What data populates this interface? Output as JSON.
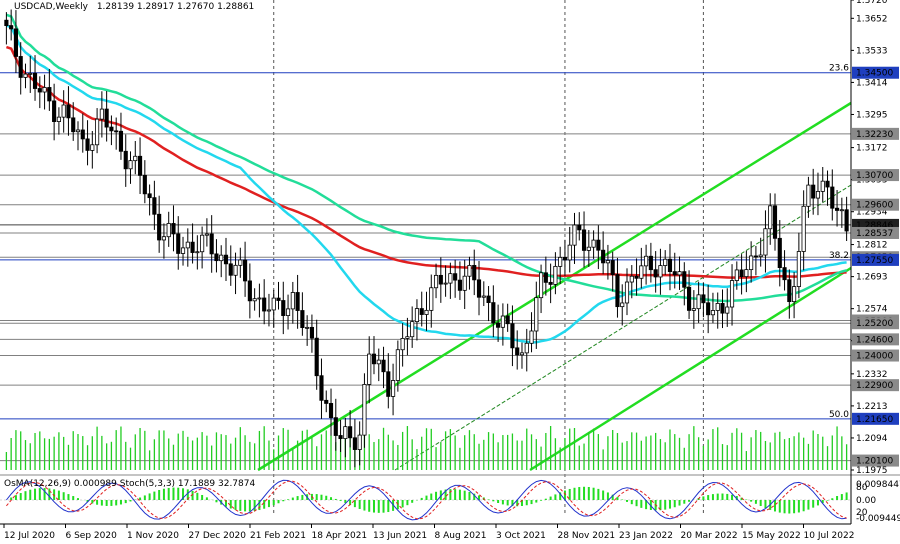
{
  "chart_data": {
    "type": "candlestick",
    "title": {
      "symbol": "USDCAD,Weekly",
      "ohlc": "1.28139 1.28917 1.27670 1.28861"
    },
    "price_axis": {
      "range": [
        1.1975,
        1.372
      ],
      "ticks": [
        "1.3720",
        "1.3652",
        "1.3533",
        "1.3414",
        "1.3295",
        "1.3172",
        "1.3053",
        "1.2934",
        "1.2812",
        "1.2693",
        "1.2574",
        "1.2455",
        "1.2332",
        "1.2213",
        "1.2094",
        "1.1975"
      ]
    },
    "levels": [
      {
        "price": 1.345,
        "label": "1.34500",
        "color": "#1f3fbf",
        "fib": "23.6"
      },
      {
        "price": 1.3223,
        "label": "1.32230",
        "color": "#808080"
      },
      {
        "price": 1.307,
        "label": "1.30700",
        "color": "#808080"
      },
      {
        "price": 1.296,
        "label": "1.29600",
        "color": "#808080"
      },
      {
        "price": 1.2885,
        "label": "1.28846",
        "color": "#404040"
      },
      {
        "price": 1.2855,
        "label": "1.28537",
        "color": "#808080"
      },
      {
        "price": 1.2765,
        "label": "1.27650",
        "color": "#808080"
      },
      {
        "price": 1.2755,
        "label": "1.27550",
        "color": "#1f3fbf",
        "fib": "38.2"
      },
      {
        "price": 1.253,
        "label": "1.25300",
        "color": "#808080"
      },
      {
        "price": 1.252,
        "label": "1.25200",
        "color": "#808080"
      },
      {
        "price": 1.246,
        "label": "1.24600",
        "color": "#808080"
      },
      {
        "price": 1.24,
        "label": "1.24000",
        "color": "#808080"
      },
      {
        "price": 1.229,
        "label": "1.22900",
        "color": "#808080"
      },
      {
        "price": 1.2165,
        "label": "1.21650",
        "color": "#1f3fbf",
        "fib": "50.0"
      },
      {
        "price": 1.201,
        "label": "1.20100",
        "color": "#808080"
      }
    ],
    "x_axis_labels": [
      "12 Jul 2020",
      "6 Sep 2020",
      "1 Nov 2020",
      "27 Dec 2020",
      "21 Feb 2021",
      "18 Apr 2021",
      "13 Jun 2021",
      "8 Aug 2021",
      "3 Oct 2021",
      "28 Nov 2021",
      "23 Jan 2022",
      "20 Mar 2022",
      "15 May 2022",
      "10 Jul 2022"
    ],
    "waypoints": [
      [
        0,
        1.36
      ],
      [
        4,
        1.345
      ],
      [
        8,
        1.335
      ],
      [
        12,
        1.33
      ],
      [
        16,
        1.318
      ],
      [
        20,
        1.328
      ],
      [
        24,
        1.318
      ],
      [
        28,
        1.306
      ],
      [
        32,
        1.288
      ],
      [
        36,
        1.28
      ],
      [
        40,
        1.282
      ],
      [
        44,
        1.278
      ],
      [
        48,
        1.272
      ],
      [
        52,
        1.262
      ],
      [
        56,
        1.256
      ],
      [
        60,
        1.262
      ],
      [
        64,
        1.242
      ],
      [
        68,
        1.215
      ],
      [
        70,
        1.208
      ],
      [
        74,
        1.212
      ],
      [
        76,
        1.24
      ],
      [
        80,
        1.23
      ],
      [
        84,
        1.248
      ],
      [
        88,
        1.262
      ],
      [
        92,
        1.268
      ],
      [
        96,
        1.27
      ],
      [
        100,
        1.262
      ],
      [
        104,
        1.25
      ],
      [
        108,
        1.24
      ],
      [
        112,
        1.265
      ],
      [
        116,
        1.276
      ],
      [
        120,
        1.285
      ],
      [
        124,
        1.28
      ],
      [
        128,
        1.262
      ],
      [
        132,
        1.27
      ],
      [
        136,
        1.275
      ],
      [
        140,
        1.27
      ],
      [
        144,
        1.26
      ],
      [
        148,
        1.255
      ],
      [
        152,
        1.265
      ],
      [
        156,
        1.275
      ],
      [
        160,
        1.29
      ],
      [
        164,
        1.26
      ],
      [
        168,
        1.3
      ],
      [
        172,
        1.305
      ],
      [
        174,
        1.29
      ],
      [
        176,
        1.288
      ]
    ],
    "series": [
      {
        "name": "",
        "color": "#e02020",
        "kind": "line"
      },
      {
        "name": "",
        "color": "#22dd99",
        "kind": "line"
      },
      {
        "name": "",
        "color": "#22d8ee",
        "kind": "line"
      }
    ],
    "oscillator": {
      "label": "OsMA(12,26,9) 0.000989  Stoch(5,3,3) 17.1889 32.7874",
      "ticks": [
        "0.0098447",
        "80",
        "0.00",
        "20",
        "-0.009449"
      ]
    }
  }
}
